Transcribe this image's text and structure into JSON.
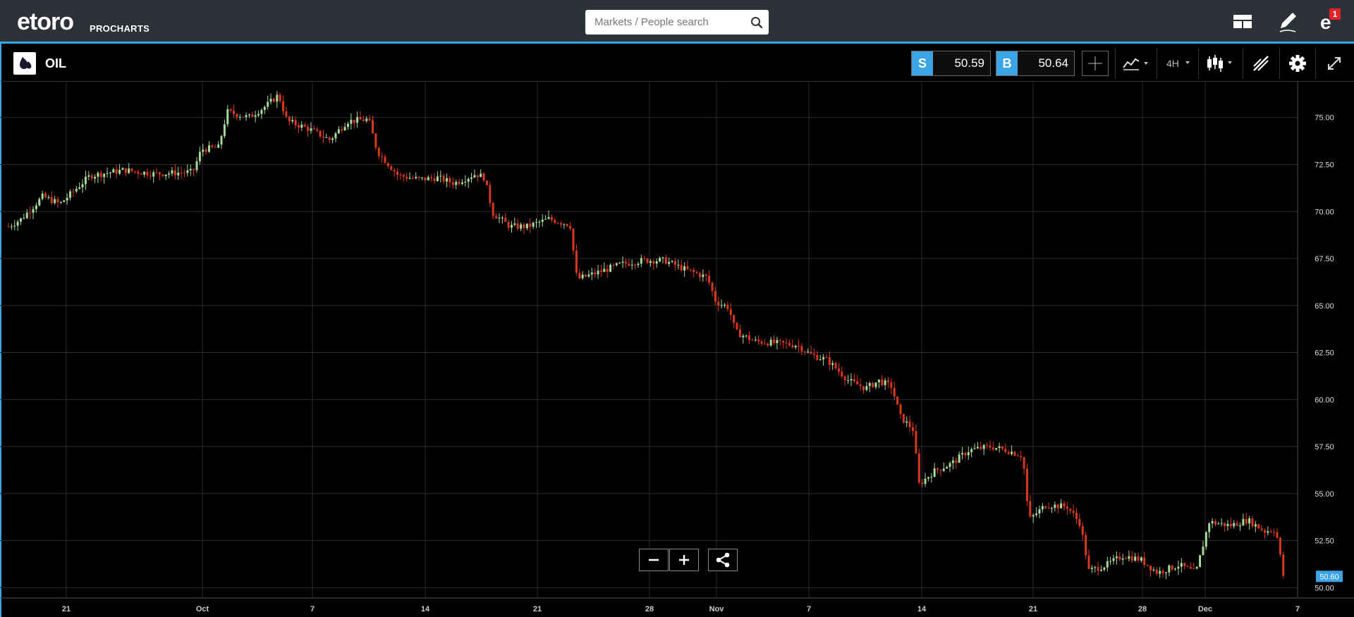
{
  "header": {
    "logo_text": "etoro",
    "logo_sub": "PROCHARTS",
    "search_placeholder": "Markets / People search",
    "notifications_count": "1",
    "icons": [
      "layout-icon",
      "edit-icon",
      "user-menu-icon"
    ]
  },
  "instrument": {
    "name": "OIL",
    "sell_label": "S",
    "sell_price": "50.59",
    "buy_label": "B",
    "buy_price": "50.64"
  },
  "toolbar": {
    "timeframe": "4H",
    "icons": [
      "crosshair-icon",
      "indicators-icon",
      "candles-icon",
      "drawing-icon",
      "settings-icon",
      "fullscreen-icon"
    ]
  },
  "colors": {
    "accent": "#3ba4e6",
    "up_candle": "#a8d99a",
    "down_candle": "#d9381e",
    "grid": "#2a2a2a",
    "price_tag": "#3ba4e6"
  },
  "chart_data": {
    "type": "candlestick",
    "title": "OIL",
    "y_ticks": [
      "75.00",
      "72.50",
      "70.00",
      "67.50",
      "65.00",
      "62.50",
      "60.00",
      "57.50",
      "55.00",
      "52.50",
      "50.00"
    ],
    "y_tick_values": [
      75,
      72.5,
      70,
      67.5,
      65,
      62.5,
      60,
      57.5,
      55,
      52.5,
      50
    ],
    "ylim": [
      49.45,
      76.9
    ],
    "x_ticks": [
      "21",
      "Oct",
      "7",
      "14",
      "21",
      "28",
      "Nov",
      "7",
      "14",
      "21",
      "28",
      "Dec",
      "7"
    ],
    "last_price": "50.60",
    "grid": true,
    "close_path": [
      [
        0,
        69.2
      ],
      [
        15,
        69.6
      ],
      [
        40,
        70.8
      ],
      [
        60,
        70.4
      ],
      [
        95,
        71.9
      ],
      [
        135,
        72.2
      ],
      [
        170,
        72.0
      ],
      [
        215,
        72.1
      ],
      [
        225,
        73.3
      ],
      [
        245,
        73.4
      ],
      [
        255,
        75.3
      ],
      [
        280,
        75.0
      ],
      [
        300,
        75.6
      ],
      [
        315,
        76.2
      ],
      [
        325,
        74.8
      ],
      [
        350,
        74.4
      ],
      [
        375,
        73.8
      ],
      [
        395,
        74.8
      ],
      [
        420,
        74.9
      ],
      [
        430,
        73.2
      ],
      [
        455,
        71.9
      ],
      [
        480,
        71.7
      ],
      [
        500,
        71.8
      ],
      [
        520,
        71.5
      ],
      [
        545,
        72.0
      ],
      [
        555,
        71.8
      ],
      [
        565,
        69.9
      ],
      [
        585,
        69.2
      ],
      [
        605,
        69.2
      ],
      [
        630,
        69.6
      ],
      [
        655,
        69.3
      ],
      [
        663,
        66.4
      ],
      [
        690,
        66.8
      ],
      [
        715,
        67.2
      ],
      [
        740,
        67.4
      ],
      [
        765,
        67.4
      ],
      [
        790,
        66.9
      ],
      [
        815,
        66.5
      ],
      [
        825,
        65.2
      ],
      [
        840,
        64.9
      ],
      [
        848,
        63.6
      ],
      [
        870,
        63.1
      ],
      [
        895,
        63.0
      ],
      [
        920,
        62.9
      ],
      [
        935,
        62.4
      ],
      [
        955,
        62.1
      ],
      [
        980,
        61.0
      ],
      [
        1000,
        60.6
      ],
      [
        1015,
        61.0
      ],
      [
        1030,
        60.7
      ],
      [
        1040,
        59.1
      ],
      [
        1055,
        58.4
      ],
      [
        1062,
        55.5
      ],
      [
        1080,
        56.2
      ],
      [
        1100,
        56.6
      ],
      [
        1120,
        57.3
      ],
      [
        1145,
        57.5
      ],
      [
        1165,
        57.3
      ],
      [
        1183,
        57.0
      ],
      [
        1190,
        53.6
      ],
      [
        1210,
        54.4
      ],
      [
        1235,
        54.3
      ],
      [
        1250,
        53.4
      ],
      [
        1260,
        50.9
      ],
      [
        1280,
        51.2
      ],
      [
        1300,
        51.7
      ],
      [
        1320,
        51.5
      ],
      [
        1340,
        50.8
      ],
      [
        1365,
        51.2
      ],
      [
        1385,
        50.8
      ],
      [
        1400,
        53.5
      ],
      [
        1425,
        53.3
      ],
      [
        1445,
        53.6
      ],
      [
        1465,
        53.0
      ],
      [
        1478,
        53.1
      ],
      [
        1487,
        50.6
      ]
    ]
  }
}
